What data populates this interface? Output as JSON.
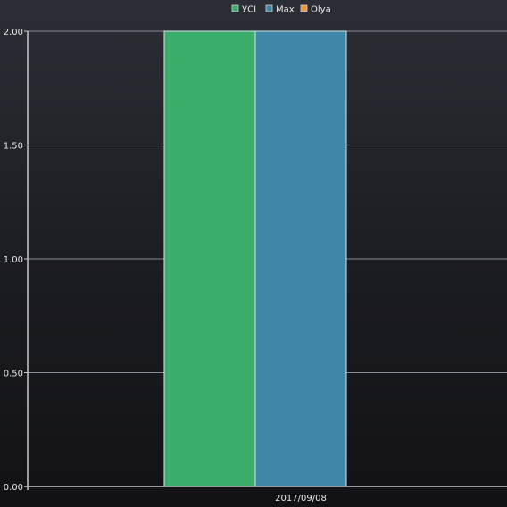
{
  "chart_data": {
    "type": "bar",
    "categories": [
      "2017/09/08"
    ],
    "series": [
      {
        "name": "УСІ",
        "color": "#3aad6b",
        "values": [
          2
        ]
      },
      {
        "name": "Max",
        "color": "#3f86a9",
        "values": [
          2
        ]
      },
      {
        "name": "Olya",
        "color": "#e8973a",
        "values": [
          0
        ]
      }
    ],
    "title": "",
    "xlabel": "",
    "ylabel": "",
    "ylim": [
      0,
      2
    ],
    "yticks": [
      "0.00",
      "0.50",
      "1.00",
      "1.50",
      "2.00"
    ],
    "ytick_values": [
      0,
      0.5,
      1,
      1.5,
      2
    ],
    "grid": true,
    "legend_position": "top-center"
  }
}
